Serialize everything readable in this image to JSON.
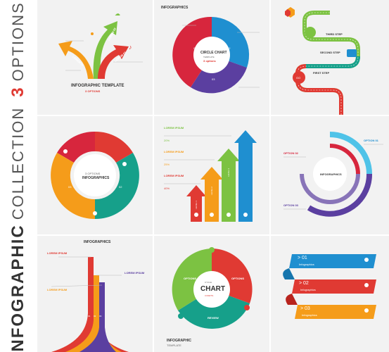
{
  "side": {
    "number": "3",
    "options_word": "OPTIONS",
    "infographic_word": "INFOGRAPHIC",
    "collection_word": "COLLECTION"
  },
  "panel1": {
    "title": "INFOGRAPHIC TEMPLATE",
    "subtitle": "3 OPTIONS",
    "arrow1": "LOREM 01",
    "arrow2": "LOREM 02",
    "arrow3": "LOREM 03"
  },
  "panel2": {
    "title": "INFOGRAPHICS",
    "center_title": "CIRCLE CHART",
    "center_sub": "TEMPLATE",
    "center_opt": "3 options",
    "n1": "01",
    "n2": "02",
    "n3": "03"
  },
  "panel3": {
    "step3": "THIRD STEP",
    "step2": "SECOND STEP",
    "step1": "FIRST STEP",
    "start": "GO"
  },
  "panel4": {
    "center_title": "3 OPTIONS",
    "center_sub": "INFOGRAPHICS",
    "n1": "01",
    "n2": "02",
    "n3": "03"
  },
  "panel5": {
    "item1": "LOREM IPSUM",
    "item2": "LOREM IPSUM",
    "item3": "LOREM IPSUM",
    "pct1": "20%",
    "pct2": "25%",
    "pct3": "40%",
    "a1": "LEVEL 1",
    "a2": "LEVEL 2",
    "a3": "LEVEL 3"
  },
  "panel6": {
    "center": "INFOGRAPHICS",
    "opt1": "OPTION 01",
    "opt2": "OPTION 02",
    "opt3": "OPTION 03"
  },
  "panel7": {
    "title": "INFOGRAPHICS",
    "l1": "LOREM IPSUM",
    "l2": "LOREM IPSUM",
    "l3": "LOREM IPSUM",
    "n1": "01",
    "n2": "02",
    "n3": "03"
  },
  "panel8": {
    "center_title": "CHART",
    "center_top": "CYCLE",
    "center_bottom": "3 PARTS",
    "opt_left": "OPTIONS",
    "opt_right": "OPTIONS",
    "opt_bottom": "REVIEW",
    "footer_title": "INFOGRAPHIC",
    "footer_sub": "TEMPLATE"
  },
  "panel9": {
    "b1_num": "> 01",
    "b1_label": "Infographics",
    "b2_num": "> 02",
    "b2_label": "Infographics",
    "b3_num": "> 03",
    "b3_label": "Infographics"
  },
  "colors": {
    "red": "#e03a33",
    "blue": "#1f8fd0",
    "green": "#7cc242",
    "orange": "#f59c1a",
    "purple": "#5b3fa0",
    "teal": "#16a08a",
    "crimson": "#d7263d"
  }
}
